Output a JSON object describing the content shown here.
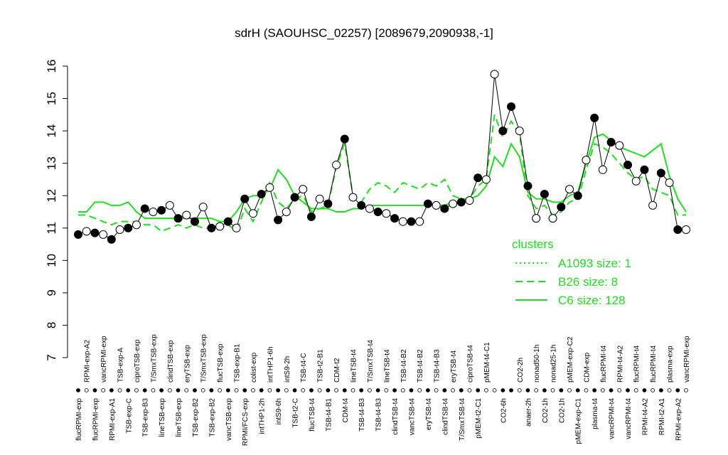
{
  "chart_data": {
    "type": "line",
    "title": "sdrH (SAOUHSC_02257) [2089679,2090938,-1]",
    "ylim": [
      7,
      16
    ],
    "yticks": [
      7,
      8,
      9,
      10,
      11,
      12,
      13,
      14,
      15,
      16
    ],
    "categories": [
      "flucRPMI-exp",
      "RPMI-exp-A2",
      "flucRPMI-exp",
      "vancRPMI-exp",
      "RPMI-exp-A1",
      "TSB-exp-A",
      "TSB-exp-C",
      "ciproTSB-exp",
      "TSB-exp-B3",
      "T/SmxTSB-exp",
      "lineTSB-exp",
      "clindTSB-exp",
      "lineTSB-exp",
      "eryTSB-exp",
      "TSB-exp-B2",
      "T/SmxTSB-exp",
      "TSB-exp-B2",
      "flucTSB-exp",
      "vancTSB-exp",
      "TSB-exp-B1",
      "RPMI/FCS-exp",
      "colist-exp",
      "intTHP1-2h",
      "intTHP1-6h",
      "intS9-6h",
      "intS9-2h",
      "TSB-t2-C",
      "TSB-t4-C",
      "flucTSB-t4",
      "TSB-t2-B1",
      "TSB-t4-B1",
      "CDM-t2",
      "CDM-t4",
      "lineTSB-t4",
      "TSB-t4-B3",
      "T/SmxTSB-t4",
      "TSB-t4-B3",
      "lineTSB-t4",
      "clindTSB-t4",
      "TSB-t4-B2",
      "vancTSB-t4",
      "TSB-t4-B2",
      "eryTSB-t4",
      "TSB-t4-B3",
      "clindTSB-t4",
      "eryTSB-t4",
      "T/SmxTSB-t4",
      "ciproTSB-t4",
      "pMEM-t2-C1",
      "pMEM-t4-C1",
      null,
      "CO2-6h",
      null,
      "CO2-2h",
      "anaer-2h",
      "nonad50-1h",
      "CO2-1h",
      "nonad25-1h",
      "CO2-1h",
      "pMEM-exp-C2",
      "pMEM-exp-C1",
      "CDM-exp",
      "plasma-t4",
      "flucRPMI-t4",
      "vancRPMI-t4",
      "RPMI-t4-A2",
      "vancRPMI-t4",
      "flucRPMI-t4",
      "RPMI-t4-A2",
      "flucRPMI-t4",
      "RPMI-t2-A1",
      "plasma-exp",
      "RPMI-exp-A2",
      "vancRPMI-exp"
    ],
    "values": [
      10.8,
      10.9,
      10.85,
      10.8,
      10.65,
      10.95,
      11.0,
      11.1,
      11.6,
      11.5,
      11.55,
      11.7,
      11.3,
      11.4,
      11.2,
      11.65,
      11.0,
      11.05,
      11.2,
      11.0,
      11.9,
      11.45,
      12.05,
      12.25,
      11.25,
      11.5,
      11.95,
      12.2,
      11.35,
      11.9,
      11.75,
      12.95,
      13.75,
      11.95,
      11.7,
      11.6,
      11.5,
      11.45,
      11.3,
      11.2,
      11.2,
      11.2,
      11.75,
      11.7,
      11.6,
      11.75,
      11.8,
      11.85,
      12.55,
      12.5,
      15.75,
      14.0,
      14.75,
      14.0,
      12.3,
      11.3,
      12.05,
      11.3,
      11.65,
      12.2,
      12.0,
      13.1,
      14.4,
      12.8,
      13.65,
      13.55,
      12.95,
      12.45,
      12.8,
      11.7,
      12.7,
      12.4,
      10.95,
      10.95
    ],
    "filled": [
      true,
      false,
      true,
      false,
      true,
      false,
      true,
      false,
      true,
      false,
      true,
      false,
      true,
      false,
      true,
      false,
      true,
      false,
      true,
      false,
      true,
      false,
      true,
      false,
      true,
      false,
      true,
      false,
      true,
      false,
      true,
      false,
      true,
      false,
      true,
      false,
      true,
      false,
      true,
      false,
      true,
      false,
      true,
      false,
      true,
      false,
      true,
      false,
      true,
      false,
      false,
      true,
      true,
      false,
      true,
      false,
      true,
      false,
      true,
      false,
      true,
      false,
      true,
      false,
      true,
      false,
      true,
      false,
      true,
      false,
      true,
      false,
      true,
      false
    ],
    "legend_title": "clusters",
    "series": [
      {
        "name": "A1093 size: 1",
        "color": "#22dd22",
        "dash": "dotted"
      },
      {
        "name": "B26 size: 8",
        "color": "#22dd22",
        "dash": "dashed",
        "values": [
          11.4,
          11.4,
          11.3,
          11.2,
          11.1,
          11.2,
          11.2,
          11.2,
          11.1,
          11.1,
          10.9,
          11.0,
          11.1,
          11.0,
          11.1,
          11.0,
          11.0,
          11.0,
          11.1,
          10.9,
          11.6,
          11.2,
          11.8,
          12.4,
          11.8,
          11.6,
          11.9,
          12.0,
          11.5,
          11.6,
          11.7,
          12.9,
          13.6,
          12.0,
          11.8,
          12.2,
          12.4,
          12.3,
          12.1,
          12.4,
          12.3,
          12.2,
          12.4,
          12.3,
          12.5,
          12.0,
          11.9,
          11.9,
          12.3,
          12.5,
          14.5,
          13.8,
          14.3,
          13.9,
          12.0,
          11.6,
          11.7,
          11.4,
          11.5,
          11.8,
          11.9,
          12.8,
          13.6,
          13.5,
          13.3,
          13.0,
          12.7,
          12.5,
          12.6,
          12.2,
          12.1,
          12.0,
          11.4,
          11.4
        ]
      },
      {
        "name": "C6 size: 128",
        "color": "#22dd22",
        "dash": "solid",
        "values": [
          11.5,
          11.5,
          11.8,
          11.8,
          11.7,
          11.7,
          11.8,
          11.5,
          11.3,
          11.3,
          11.3,
          11.3,
          11.3,
          11.3,
          11.3,
          11.3,
          11.3,
          11.2,
          11.2,
          11.5,
          11.9,
          12.0,
          12.0,
          12.2,
          12.8,
          12.5,
          12.0,
          11.8,
          11.6,
          11.6,
          11.6,
          11.5,
          11.5,
          11.6,
          11.6,
          11.7,
          11.7,
          11.7,
          11.7,
          11.7,
          11.7,
          11.7,
          11.7,
          11.7,
          11.7,
          11.8,
          11.8,
          11.9,
          12.0,
          12.3,
          13.2,
          12.9,
          13.6,
          13.2,
          12.1,
          11.9,
          11.9,
          11.8,
          11.8,
          12.0,
          12.1,
          13.0,
          13.8,
          13.9,
          13.7,
          13.5,
          13.4,
          13.3,
          13.2,
          13.4,
          13.6,
          12.6,
          11.9,
          11.5
        ]
      }
    ]
  }
}
